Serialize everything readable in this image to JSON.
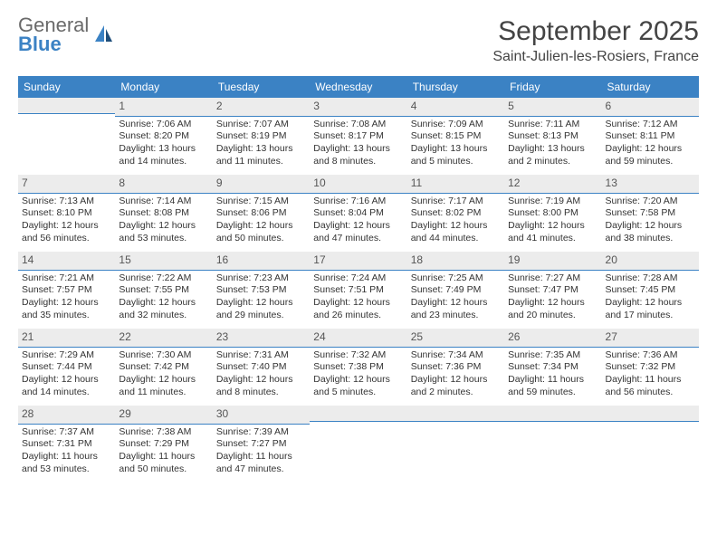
{
  "brand": {
    "line1": "General",
    "line2": "Blue"
  },
  "title": "September 2025",
  "location": "Saint-Julien-les-Rosiers, France",
  "colors": {
    "accent": "#3b82c4",
    "header_bg": "#3b82c4",
    "daynum_bg": "#ececec",
    "text": "#333333"
  },
  "weekdays": [
    "Sunday",
    "Monday",
    "Tuesday",
    "Wednesday",
    "Thursday",
    "Friday",
    "Saturday"
  ],
  "weeks": [
    [
      {
        "num": "",
        "sunrise": "",
        "sunset": "",
        "daylight": ""
      },
      {
        "num": "1",
        "sunrise": "Sunrise: 7:06 AM",
        "sunset": "Sunset: 8:20 PM",
        "daylight": "Daylight: 13 hours and 14 minutes."
      },
      {
        "num": "2",
        "sunrise": "Sunrise: 7:07 AM",
        "sunset": "Sunset: 8:19 PM",
        "daylight": "Daylight: 13 hours and 11 minutes."
      },
      {
        "num": "3",
        "sunrise": "Sunrise: 7:08 AM",
        "sunset": "Sunset: 8:17 PM",
        "daylight": "Daylight: 13 hours and 8 minutes."
      },
      {
        "num": "4",
        "sunrise": "Sunrise: 7:09 AM",
        "sunset": "Sunset: 8:15 PM",
        "daylight": "Daylight: 13 hours and 5 minutes."
      },
      {
        "num": "5",
        "sunrise": "Sunrise: 7:11 AM",
        "sunset": "Sunset: 8:13 PM",
        "daylight": "Daylight: 13 hours and 2 minutes."
      },
      {
        "num": "6",
        "sunrise": "Sunrise: 7:12 AM",
        "sunset": "Sunset: 8:11 PM",
        "daylight": "Daylight: 12 hours and 59 minutes."
      }
    ],
    [
      {
        "num": "7",
        "sunrise": "Sunrise: 7:13 AM",
        "sunset": "Sunset: 8:10 PM",
        "daylight": "Daylight: 12 hours and 56 minutes."
      },
      {
        "num": "8",
        "sunrise": "Sunrise: 7:14 AM",
        "sunset": "Sunset: 8:08 PM",
        "daylight": "Daylight: 12 hours and 53 minutes."
      },
      {
        "num": "9",
        "sunrise": "Sunrise: 7:15 AM",
        "sunset": "Sunset: 8:06 PM",
        "daylight": "Daylight: 12 hours and 50 minutes."
      },
      {
        "num": "10",
        "sunrise": "Sunrise: 7:16 AM",
        "sunset": "Sunset: 8:04 PM",
        "daylight": "Daylight: 12 hours and 47 minutes."
      },
      {
        "num": "11",
        "sunrise": "Sunrise: 7:17 AM",
        "sunset": "Sunset: 8:02 PM",
        "daylight": "Daylight: 12 hours and 44 minutes."
      },
      {
        "num": "12",
        "sunrise": "Sunrise: 7:19 AM",
        "sunset": "Sunset: 8:00 PM",
        "daylight": "Daylight: 12 hours and 41 minutes."
      },
      {
        "num": "13",
        "sunrise": "Sunrise: 7:20 AM",
        "sunset": "Sunset: 7:58 PM",
        "daylight": "Daylight: 12 hours and 38 minutes."
      }
    ],
    [
      {
        "num": "14",
        "sunrise": "Sunrise: 7:21 AM",
        "sunset": "Sunset: 7:57 PM",
        "daylight": "Daylight: 12 hours and 35 minutes."
      },
      {
        "num": "15",
        "sunrise": "Sunrise: 7:22 AM",
        "sunset": "Sunset: 7:55 PM",
        "daylight": "Daylight: 12 hours and 32 minutes."
      },
      {
        "num": "16",
        "sunrise": "Sunrise: 7:23 AM",
        "sunset": "Sunset: 7:53 PM",
        "daylight": "Daylight: 12 hours and 29 minutes."
      },
      {
        "num": "17",
        "sunrise": "Sunrise: 7:24 AM",
        "sunset": "Sunset: 7:51 PM",
        "daylight": "Daylight: 12 hours and 26 minutes."
      },
      {
        "num": "18",
        "sunrise": "Sunrise: 7:25 AM",
        "sunset": "Sunset: 7:49 PM",
        "daylight": "Daylight: 12 hours and 23 minutes."
      },
      {
        "num": "19",
        "sunrise": "Sunrise: 7:27 AM",
        "sunset": "Sunset: 7:47 PM",
        "daylight": "Daylight: 12 hours and 20 minutes."
      },
      {
        "num": "20",
        "sunrise": "Sunrise: 7:28 AM",
        "sunset": "Sunset: 7:45 PM",
        "daylight": "Daylight: 12 hours and 17 minutes."
      }
    ],
    [
      {
        "num": "21",
        "sunrise": "Sunrise: 7:29 AM",
        "sunset": "Sunset: 7:44 PM",
        "daylight": "Daylight: 12 hours and 14 minutes."
      },
      {
        "num": "22",
        "sunrise": "Sunrise: 7:30 AM",
        "sunset": "Sunset: 7:42 PM",
        "daylight": "Daylight: 12 hours and 11 minutes."
      },
      {
        "num": "23",
        "sunrise": "Sunrise: 7:31 AM",
        "sunset": "Sunset: 7:40 PM",
        "daylight": "Daylight: 12 hours and 8 minutes."
      },
      {
        "num": "24",
        "sunrise": "Sunrise: 7:32 AM",
        "sunset": "Sunset: 7:38 PM",
        "daylight": "Daylight: 12 hours and 5 minutes."
      },
      {
        "num": "25",
        "sunrise": "Sunrise: 7:34 AM",
        "sunset": "Sunset: 7:36 PM",
        "daylight": "Daylight: 12 hours and 2 minutes."
      },
      {
        "num": "26",
        "sunrise": "Sunrise: 7:35 AM",
        "sunset": "Sunset: 7:34 PM",
        "daylight": "Daylight: 11 hours and 59 minutes."
      },
      {
        "num": "27",
        "sunrise": "Sunrise: 7:36 AM",
        "sunset": "Sunset: 7:32 PM",
        "daylight": "Daylight: 11 hours and 56 minutes."
      }
    ],
    [
      {
        "num": "28",
        "sunrise": "Sunrise: 7:37 AM",
        "sunset": "Sunset: 7:31 PM",
        "daylight": "Daylight: 11 hours and 53 minutes."
      },
      {
        "num": "29",
        "sunrise": "Sunrise: 7:38 AM",
        "sunset": "Sunset: 7:29 PM",
        "daylight": "Daylight: 11 hours and 50 minutes."
      },
      {
        "num": "30",
        "sunrise": "Sunrise: 7:39 AM",
        "sunset": "Sunset: 7:27 PM",
        "daylight": "Daylight: 11 hours and 47 minutes."
      },
      {
        "num": "",
        "sunrise": "",
        "sunset": "",
        "daylight": ""
      },
      {
        "num": "",
        "sunrise": "",
        "sunset": "",
        "daylight": ""
      },
      {
        "num": "",
        "sunrise": "",
        "sunset": "",
        "daylight": ""
      },
      {
        "num": "",
        "sunrise": "",
        "sunset": "",
        "daylight": ""
      }
    ]
  ]
}
